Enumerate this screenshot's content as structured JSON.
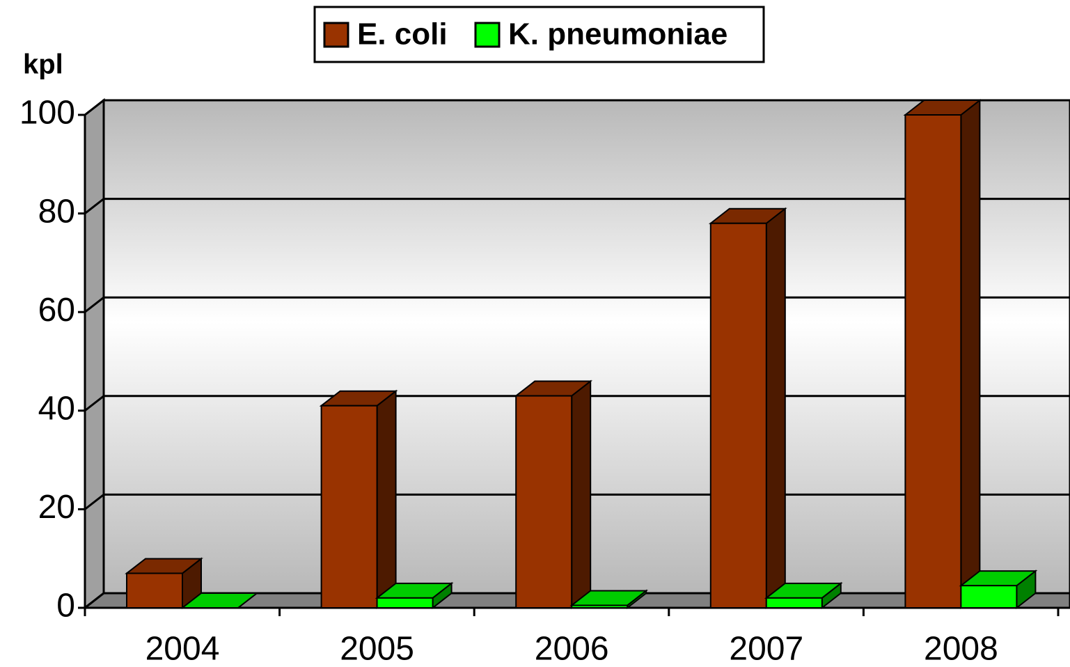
{
  "chart_data": {
    "type": "bar3d",
    "y_label": "kpl",
    "categories": [
      "2004",
      "2005",
      "2006",
      "2007",
      "2008"
    ],
    "series": [
      {
        "name": "E. coli",
        "color": "#993300",
        "values": [
          7,
          41,
          43,
          78,
          100
        ]
      },
      {
        "name": "K. pneumoniae",
        "color": "#00ff00",
        "values": [
          0,
          2,
          0.5,
          2,
          4.5
        ]
      }
    ],
    "ylim": [
      0,
      100
    ],
    "yticks": [
      0,
      20,
      40,
      60,
      80,
      100
    ],
    "grid": true,
    "legend": "top"
  }
}
